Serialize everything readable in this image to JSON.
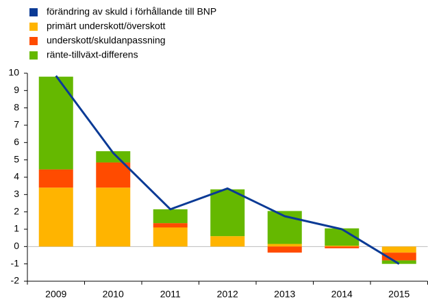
{
  "chart_data": {
    "type": "bar",
    "stacked": true,
    "categories": [
      "2009",
      "2010",
      "2011",
      "2012",
      "2013",
      "2014",
      "2015"
    ],
    "series": [
      {
        "name": "förändring av skuld i förhållande till BNP",
        "color": "#0a3a95",
        "type": "line",
        "values": [
          9.85,
          5.4,
          2.15,
          3.35,
          1.75,
          1.0,
          -1.0
        ]
      },
      {
        "name": "primärt underskott/överskott",
        "color": "#ffb400",
        "type": "bar",
        "values": [
          3.4,
          3.4,
          1.1,
          0.6,
          0.15,
          0.05,
          -0.35
        ]
      },
      {
        "name": "underskott/skuldanpassning",
        "color": "#ff4b00",
        "type": "bar",
        "values": [
          1.05,
          1.45,
          0.25,
          0,
          -0.35,
          -0.1,
          -0.45
        ]
      },
      {
        "name": "ränte-tillväxt-differens",
        "color": "#65b800",
        "type": "bar",
        "values": [
          5.35,
          0.65,
          0.8,
          2.7,
          1.9,
          1.0,
          -0.2
        ]
      }
    ],
    "ylim": [
      -2,
      10
    ],
    "yticks": [
      -2,
      -1,
      0,
      1,
      2,
      3,
      4,
      5,
      6,
      7,
      8,
      9,
      10
    ]
  }
}
